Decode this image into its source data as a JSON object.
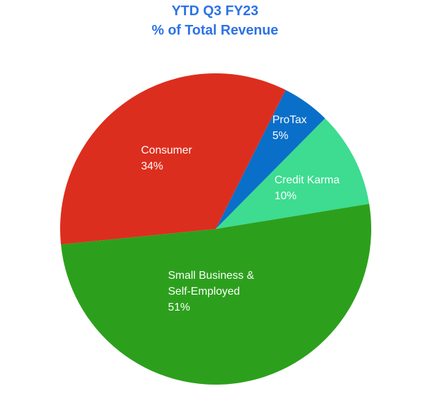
{
  "chart_data": {
    "type": "pie",
    "title": "YTD Q3 FY23",
    "subtitle": "% of Total Revenue",
    "categories": [
      "ProTax",
      "Credit Karma",
      "Small Business & Self-Employed",
      "Consumer"
    ],
    "values": [
      5,
      10,
      51,
      34
    ],
    "value_labels": [
      "5%",
      "10%",
      "51%",
      "34%"
    ],
    "colors": [
      "#0a6fc9",
      "#3ddc91",
      "#2ca01c",
      "#dc2e1e"
    ]
  }
}
